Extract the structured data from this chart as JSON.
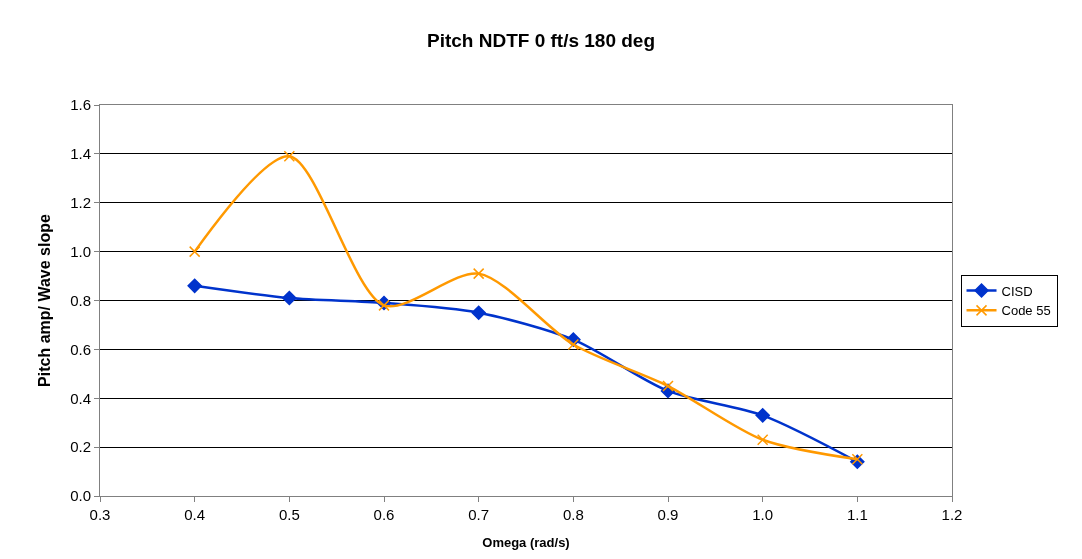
{
  "chart_data": {
    "type": "line",
    "title": "Pitch NDTF 0 ft/s 180 deg",
    "xlabel": "Omega (rad/s)",
    "ylabel": "Pitch amp/ Wave slope",
    "x": [
      0.4,
      0.5,
      0.6,
      0.7,
      0.8,
      0.9,
      1.0,
      1.1
    ],
    "series": [
      {
        "name": "CISD",
        "color": "#0033cc",
        "marker": "diamond",
        "values": [
          0.86,
          0.81,
          0.79,
          0.75,
          0.64,
          0.43,
          0.33,
          0.14
        ]
      },
      {
        "name": "Code 55",
        "color": "#ff9900",
        "marker": "cross",
        "values": [
          1.0,
          1.39,
          0.78,
          0.91,
          0.62,
          0.45,
          0.23,
          0.15
        ]
      }
    ],
    "xlim": [
      0.3,
      1.2
    ],
    "xticks": [
      {
        "value": 0.3,
        "label": "0.3"
      },
      {
        "value": 0.4,
        "label": "0.4"
      },
      {
        "value": 0.5,
        "label": "0.5"
      },
      {
        "value": 0.6,
        "label": "0.6"
      },
      {
        "value": 0.7,
        "label": "0.7"
      },
      {
        "value": 0.8,
        "label": "0.8"
      },
      {
        "value": 0.9,
        "label": "0.9"
      },
      {
        "value": 1.0,
        "label": "1.0"
      },
      {
        "value": 1.1,
        "label": "1.1"
      },
      {
        "value": 1.2,
        "label": "1.2"
      }
    ],
    "ylim": [
      0,
      1.6
    ],
    "yticks": [
      {
        "value": 0,
        "label": "0.0"
      },
      {
        "value": 0.2,
        "label": "0.2"
      },
      {
        "value": 0.4,
        "label": "0.4"
      },
      {
        "value": 0.6,
        "label": "0.6"
      },
      {
        "value": 0.8,
        "label": "0.8"
      },
      {
        "value": 1.0,
        "label": "1.0"
      },
      {
        "value": 1.2,
        "label": "1.2"
      },
      {
        "value": 1.4,
        "label": "1.4"
      },
      {
        "value": 1.6,
        "label": "1.6"
      }
    ],
    "grid": "y",
    "legend": "right"
  }
}
